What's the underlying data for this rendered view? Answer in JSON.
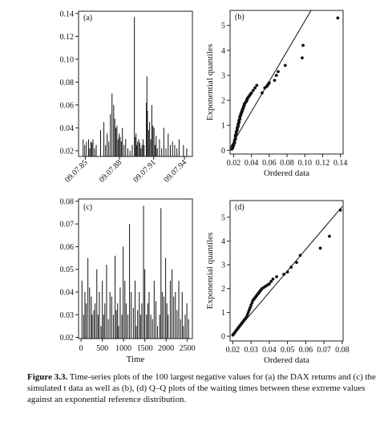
{
  "caption": {
    "label": "Figure 3.3.",
    "text": "Time-series plots of the 100 largest negative values for (a) the DAX returns and (c) the simulated t data as well as (b), (d) Q–Q plots of the waiting times between these extreme values against an exponential reference distribution."
  },
  "chart_data": [
    {
      "id": "a",
      "type": "bar",
      "panel_label": "(a)",
      "x_ticks": [
        "09.07.85",
        "09.07.88",
        "09.07.91",
        "09.07.94"
      ],
      "y_ticks": [
        "0.02",
        "0.04",
        "0.06",
        "0.08",
        "0.10",
        "0.12",
        "0.14"
      ],
      "ylim": [
        0.015,
        0.142
      ],
      "x": [
        0.02,
        0.035,
        0.05,
        0.07,
        0.08,
        0.09,
        0.1,
        0.11,
        0.125,
        0.14,
        0.18,
        0.21,
        0.225,
        0.24,
        0.255,
        0.27,
        0.285,
        0.3,
        0.31,
        0.32,
        0.33,
        0.34,
        0.35,
        0.36,
        0.37,
        0.38,
        0.395,
        0.41,
        0.43,
        0.45,
        0.47,
        0.49,
        0.5,
        0.505,
        0.51,
        0.52,
        0.53,
        0.54,
        0.55,
        0.56,
        0.57,
        0.58,
        0.6,
        0.605,
        0.61,
        0.62,
        0.63,
        0.64,
        0.65,
        0.66,
        0.67,
        0.68,
        0.69,
        0.7,
        0.72,
        0.74,
        0.76,
        0.78,
        0.8,
        0.82,
        0.84,
        0.86,
        0.88,
        0.9,
        0.94,
        0.97
      ],
      "values": [
        0.03,
        0.025,
        0.028,
        0.03,
        0.022,
        0.028,
        0.027,
        0.03,
        0.022,
        0.025,
        0.038,
        0.045,
        0.025,
        0.035,
        0.028,
        0.052,
        0.07,
        0.06,
        0.048,
        0.04,
        0.042,
        0.03,
        0.035,
        0.032,
        0.028,
        0.04,
        0.025,
        0.03,
        0.022,
        0.02,
        0.025,
        0.137,
        0.032,
        0.035,
        0.025,
        0.028,
        0.03,
        0.027,
        0.022,
        0.025,
        0.03,
        0.025,
        0.062,
        0.085,
        0.055,
        0.038,
        0.045,
        0.03,
        0.06,
        0.042,
        0.04,
        0.025,
        0.033,
        0.022,
        0.03,
        0.022,
        0.04,
        0.022,
        0.035,
        0.025,
        0.028,
        0.025,
        0.022,
        0.03,
        0.025,
        0.022
      ]
    },
    {
      "id": "b",
      "type": "scatter",
      "panel_label": "(b)",
      "xlabel": "Ordered data",
      "ylabel": "Exponential quantiles",
      "x_ticks": [
        "0.02",
        "0.04",
        "0.06",
        "0.08",
        "0.10",
        "0.12",
        "0.14"
      ],
      "y_ticks": [
        "0",
        "1",
        "2",
        "3",
        "4",
        "5"
      ],
      "xlim": [
        0.016,
        0.143
      ],
      "ylim": [
        -0.15,
        5.6
      ],
      "line": {
        "x": [
          0.016,
          0.107
        ],
        "y": [
          0.1,
          5.6
        ]
      },
      "x": [
        0.018,
        0.019,
        0.019,
        0.02,
        0.02,
        0.021,
        0.021,
        0.021,
        0.022,
        0.022,
        0.022,
        0.022,
        0.023,
        0.023,
        0.023,
        0.024,
        0.024,
        0.024,
        0.025,
        0.025,
        0.025,
        0.026,
        0.026,
        0.026,
        0.027,
        0.027,
        0.027,
        0.028,
        0.028,
        0.029,
        0.029,
        0.03,
        0.03,
        0.031,
        0.031,
        0.032,
        0.032,
        0.033,
        0.034,
        0.035,
        0.035,
        0.036,
        0.037,
        0.038,
        0.039,
        0.04,
        0.042,
        0.044,
        0.046,
        0.052,
        0.055,
        0.057,
        0.058,
        0.059,
        0.06,
        0.066,
        0.068,
        0.07,
        0.078,
        0.097,
        0.098,
        0.137
      ],
      "y": [
        0.05,
        0.1,
        0.15,
        0.2,
        0.25,
        0.3,
        0.35,
        0.4,
        0.45,
        0.5,
        0.55,
        0.6,
        0.65,
        0.7,
        0.75,
        0.8,
        0.85,
        0.9,
        0.95,
        1.0,
        1.05,
        1.1,
        1.15,
        1.2,
        1.25,
        1.3,
        1.35,
        1.4,
        1.45,
        1.5,
        1.55,
        1.6,
        1.65,
        1.7,
        1.75,
        1.8,
        1.85,
        1.9,
        1.95,
        2.0,
        2.05,
        2.1,
        2.15,
        2.2,
        2.25,
        2.3,
        2.4,
        2.5,
        2.6,
        2.3,
        2.5,
        2.55,
        2.6,
        2.65,
        2.7,
        2.8,
        3.0,
        3.15,
        3.4,
        3.7,
        4.2,
        5.3
      ]
    },
    {
      "id": "c",
      "type": "bar",
      "panel_label": "(c)",
      "xlabel": "Time",
      "x_ticks": [
        "0",
        "500",
        "1000",
        "1500",
        "2000",
        "2500"
      ],
      "y_ticks": [
        "0.02",
        "0.03",
        "0.04",
        "0.05",
        "0.06",
        "0.07",
        "0.08"
      ],
      "xlim": [
        -60,
        2620
      ],
      "ylim": [
        0.0195,
        0.081
      ],
      "x": [
        20,
        60,
        90,
        120,
        160,
        200,
        240,
        260,
        300,
        330,
        370,
        400,
        430,
        470,
        500,
        530,
        560,
        600,
        640,
        680,
        720,
        760,
        800,
        830,
        860,
        880,
        920,
        960,
        990,
        1030,
        1060,
        1100,
        1140,
        1180,
        1230,
        1270,
        1300,
        1330,
        1370,
        1400,
        1430,
        1470,
        1500,
        1540,
        1570,
        1600,
        1640,
        1680,
        1720,
        1760,
        1800,
        1850,
        1880,
        1910,
        1950,
        1990,
        2020,
        2050,
        2100,
        2140,
        2180,
        2220,
        2260,
        2300,
        2340,
        2380,
        2410,
        2450,
        2490,
        2530
      ],
      "values": [
        0.045,
        0.03,
        0.04,
        0.035,
        0.055,
        0.042,
        0.038,
        0.03,
        0.032,
        0.035,
        0.05,
        0.03,
        0.04,
        0.025,
        0.045,
        0.03,
        0.035,
        0.052,
        0.028,
        0.04,
        0.038,
        0.03,
        0.056,
        0.032,
        0.035,
        0.025,
        0.042,
        0.03,
        0.06,
        0.045,
        0.035,
        0.03,
        0.07,
        0.04,
        0.033,
        0.045,
        0.025,
        0.032,
        0.04,
        0.03,
        0.035,
        0.078,
        0.05,
        0.03,
        0.035,
        0.04,
        0.03,
        0.028,
        0.045,
        0.036,
        0.025,
        0.03,
        0.077,
        0.04,
        0.038,
        0.055,
        0.035,
        0.03,
        0.045,
        0.05,
        0.038,
        0.04,
        0.032,
        0.045,
        0.028,
        0.04,
        0.025,
        0.03,
        0.035,
        0.028
      ]
    },
    {
      "id": "d",
      "type": "scatter",
      "panel_label": "(d)",
      "xlabel": "Ordered data",
      "ylabel": "Exponential quantiles",
      "x_ticks": [
        "0.02",
        "0.03",
        "0.04",
        "0.05",
        "0.06",
        "0.07",
        "0.08"
      ],
      "y_ticks": [
        "0",
        "1",
        "2",
        "3",
        "4",
        "5"
      ],
      "xlim": [
        0.0185,
        0.0805
      ],
      "ylim": [
        -0.2,
        5.7
      ],
      "line": {
        "x": [
          0.0195,
          0.08
        ],
        "y": [
          0.0,
          5.45
        ]
      },
      "x": [
        0.02,
        0.0205,
        0.021,
        0.0215,
        0.022,
        0.0225,
        0.023,
        0.0235,
        0.024,
        0.0245,
        0.025,
        0.0255,
        0.026,
        0.0265,
        0.027,
        0.0275,
        0.028,
        0.0285,
        0.029,
        0.0295,
        0.03,
        0.0305,
        0.031,
        0.0315,
        0.032,
        0.0325,
        0.033,
        0.0335,
        0.034,
        0.0345,
        0.035,
        0.0355,
        0.036,
        0.037,
        0.038,
        0.039,
        0.04,
        0.041,
        0.042,
        0.044,
        0.048,
        0.05,
        0.052,
        0.055,
        0.057,
        0.068,
        0.073,
        0.079
      ],
      "y": [
        0.05,
        0.1,
        0.15,
        0.2,
        0.25,
        0.3,
        0.35,
        0.4,
        0.45,
        0.5,
        0.55,
        0.6,
        0.65,
        0.7,
        0.75,
        0.8,
        0.9,
        1.0,
        1.1,
        1.2,
        1.3,
        1.4,
        1.5,
        1.55,
        1.6,
        1.65,
        1.7,
        1.75,
        1.8,
        1.85,
        1.9,
        1.95,
        2.0,
        2.05,
        2.1,
        2.15,
        2.2,
        2.3,
        2.4,
        2.5,
        2.6,
        2.7,
        2.9,
        3.1,
        3.4,
        3.7,
        4.2,
        5.3
      ]
    }
  ]
}
